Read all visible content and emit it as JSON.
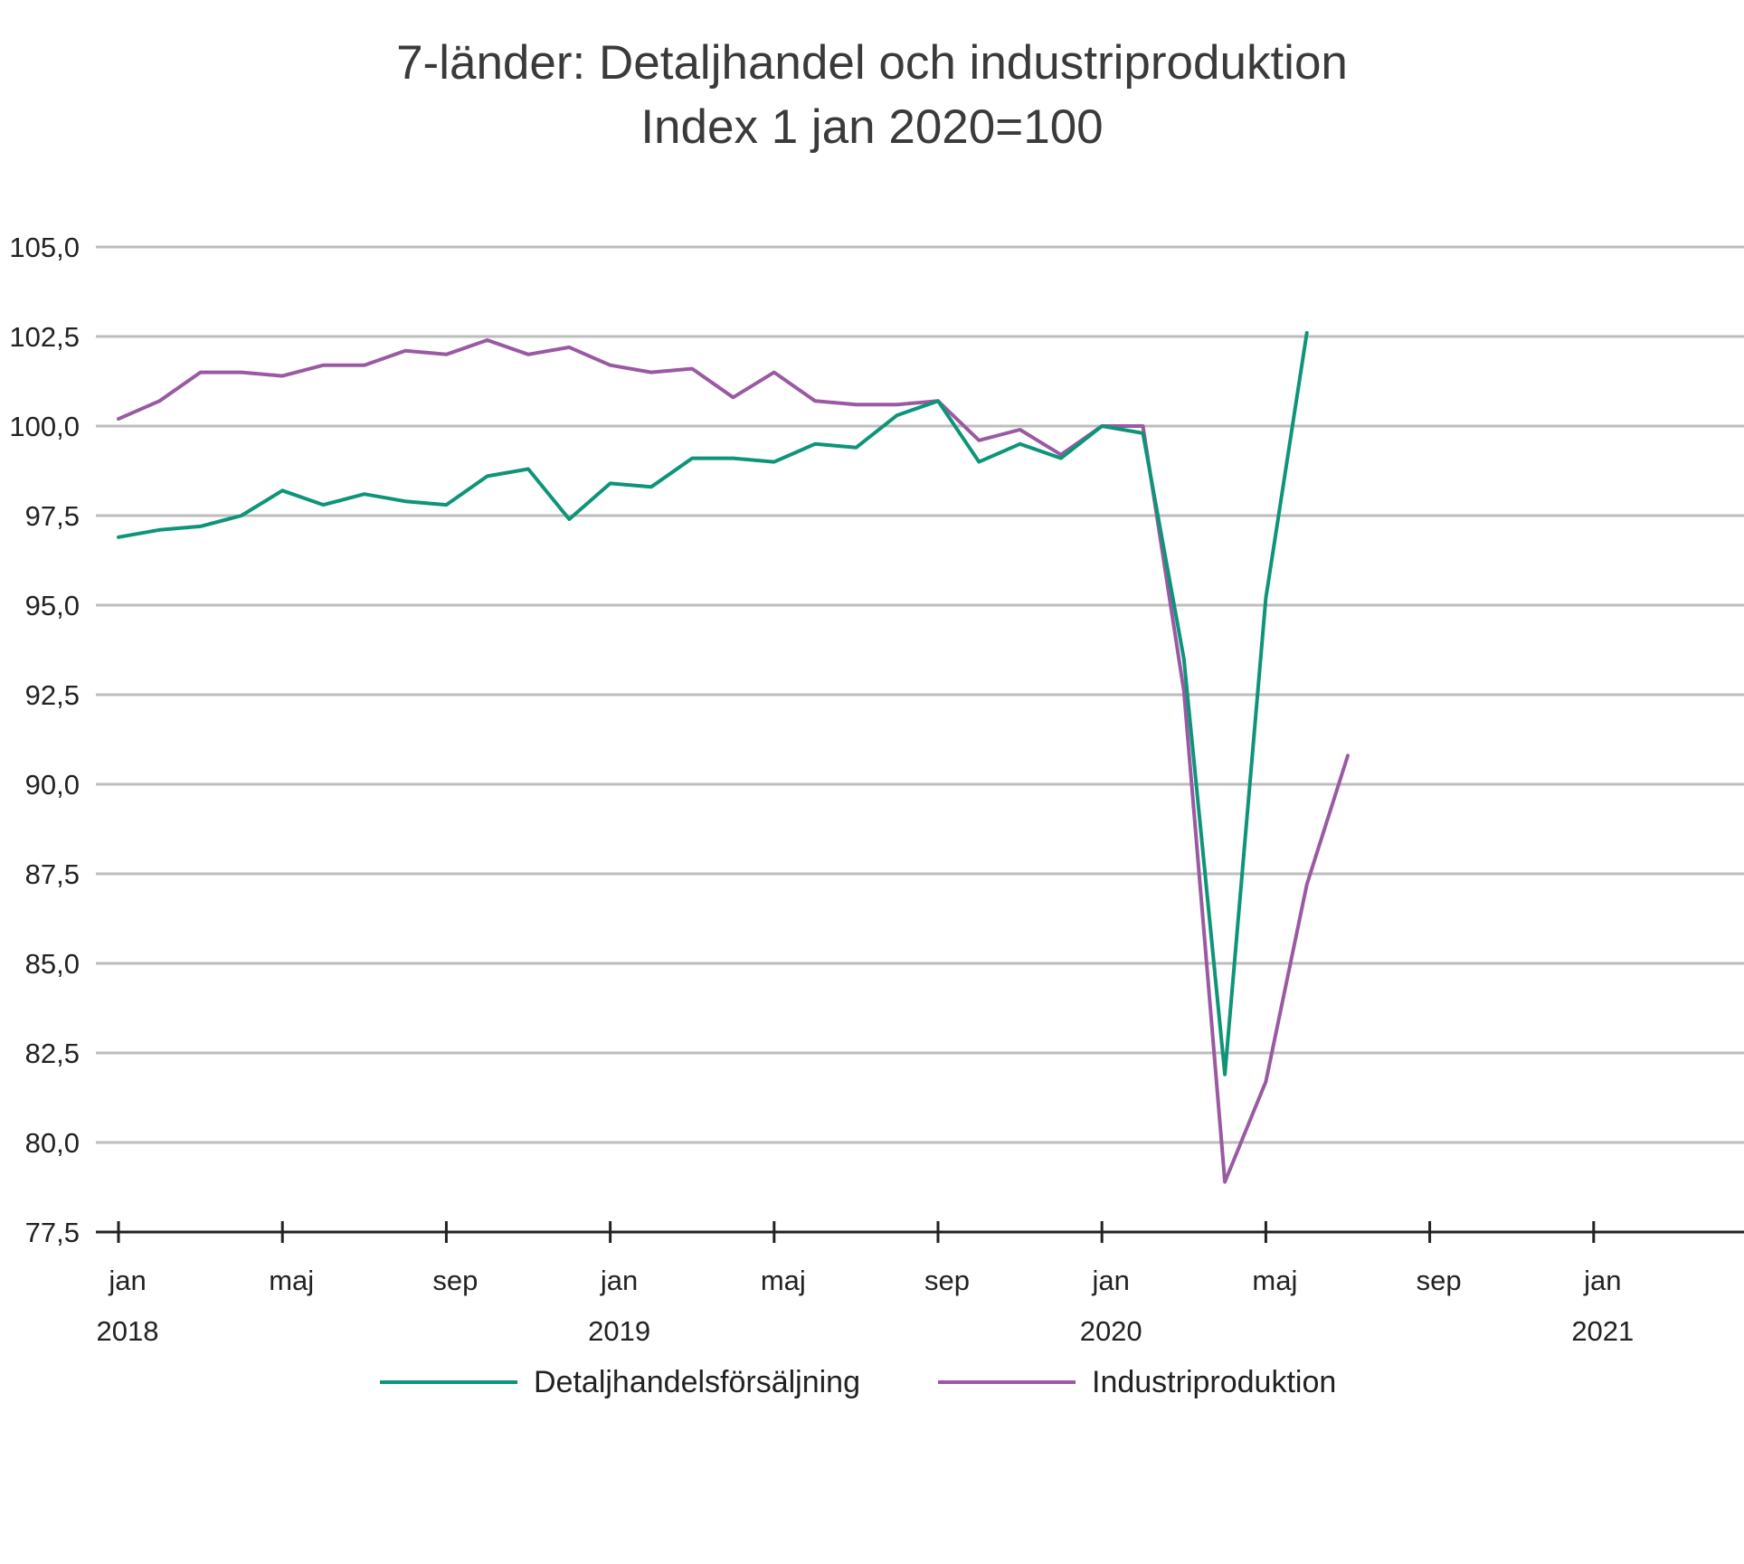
{
  "chart_data": {
    "type": "line",
    "title": "7-länder: Detaljhandel och industriproduktion",
    "subtitle": "Index 1 jan 2020=100",
    "xlabel": "",
    "ylabel": "",
    "ylim": [
      77.5,
      105.0
    ],
    "yticks": [
      "105,0",
      "102,5",
      "100,0",
      "97,5",
      "95,0",
      "92,5",
      "90,0",
      "87,5",
      "85,0",
      "82,5",
      "80,0",
      "77,5"
    ],
    "yticks_values": [
      105.0,
      102.5,
      100.0,
      97.5,
      95.0,
      92.5,
      90.0,
      87.5,
      85.0,
      82.5,
      80.0,
      77.5
    ],
    "xlim": [
      "2018-01",
      "2021-05"
    ],
    "xticks": [
      {
        "date": "2018-01",
        "month": "jan",
        "year": "2018"
      },
      {
        "date": "2018-05",
        "month": "maj",
        "year": ""
      },
      {
        "date": "2018-09",
        "month": "sep",
        "year": ""
      },
      {
        "date": "2019-01",
        "month": "jan",
        "year": "2019"
      },
      {
        "date": "2019-05",
        "month": "maj",
        "year": ""
      },
      {
        "date": "2019-09",
        "month": "sep",
        "year": ""
      },
      {
        "date": "2020-01",
        "month": "jan",
        "year": "2020"
      },
      {
        "date": "2020-05",
        "month": "maj",
        "year": ""
      },
      {
        "date": "2020-09",
        "month": "sep",
        "year": ""
      },
      {
        "date": "2021-01",
        "month": "jan",
        "year": "2021"
      }
    ],
    "grid": true,
    "legend_position": "bottom",
    "x": [
      "2018-01",
      "2018-02",
      "2018-03",
      "2018-04",
      "2018-05",
      "2018-06",
      "2018-07",
      "2018-08",
      "2018-09",
      "2018-10",
      "2018-11",
      "2018-12",
      "2019-01",
      "2019-02",
      "2019-03",
      "2019-04",
      "2019-05",
      "2019-06",
      "2019-07",
      "2019-08",
      "2019-09",
      "2019-10",
      "2019-11",
      "2019-12",
      "2020-01",
      "2020-02",
      "2020-03",
      "2020-04",
      "2020-05",
      "2020-06",
      "2020-07"
    ],
    "series": [
      {
        "name": "Detaljhandelsförsäljning",
        "color": "#0e9478",
        "values": [
          96.9,
          97.1,
          97.2,
          97.5,
          98.2,
          97.8,
          98.1,
          97.9,
          97.8,
          98.6,
          98.8,
          97.4,
          98.4,
          98.3,
          99.1,
          99.1,
          99.0,
          99.5,
          99.4,
          100.3,
          100.7,
          99.0,
          99.5,
          99.1,
          100.0,
          99.8,
          93.5,
          81.9,
          95.2,
          102.6,
          null
        ]
      },
      {
        "name": "Industriproduktion",
        "color": "#9a59a3",
        "values": [
          100.2,
          100.7,
          101.5,
          101.5,
          101.4,
          101.7,
          101.7,
          102.1,
          102.0,
          102.4,
          102.0,
          102.2,
          101.7,
          101.5,
          101.6,
          100.8,
          101.5,
          100.7,
          100.6,
          100.6,
          100.7,
          99.6,
          99.9,
          99.2,
          100.0,
          100.0,
          92.6,
          78.9,
          81.7,
          87.2,
          90.8
        ]
      }
    ]
  }
}
